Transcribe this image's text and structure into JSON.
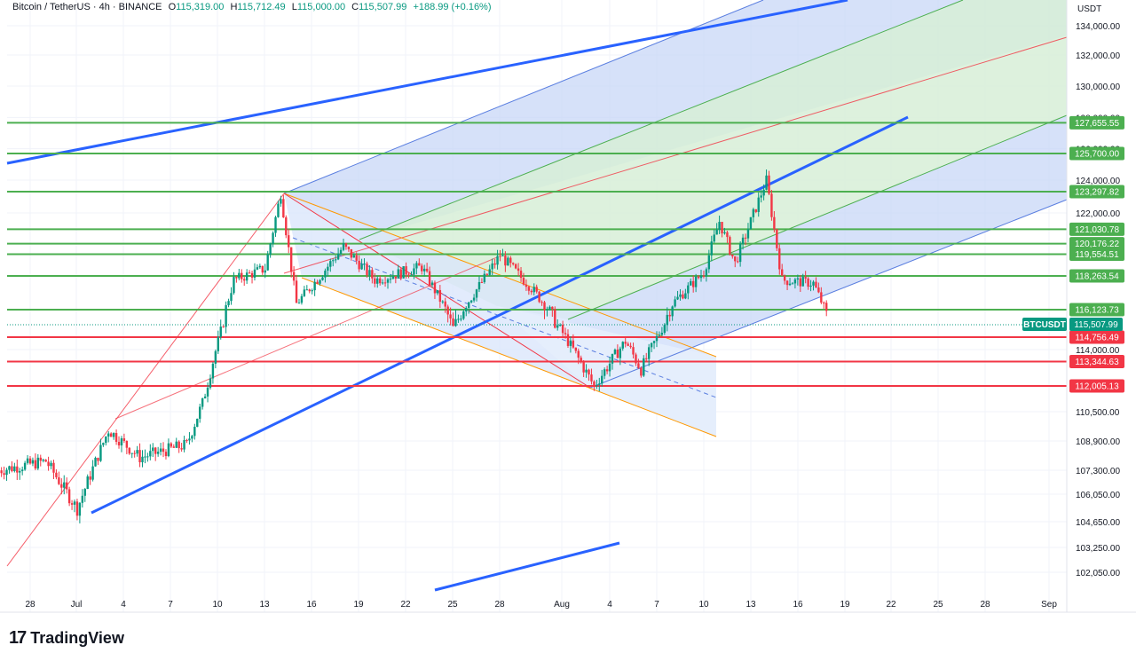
{
  "header": {
    "pair": "Bitcoin / TetherUS · 4h · BINANCE",
    "open_label": "O",
    "open": "115,319.00",
    "high_label": "H",
    "high": "115,712.49",
    "low_label": "L",
    "low": "115,000.00",
    "close_label": "C",
    "close": "115,507.99",
    "change": "+188.99 (+0.16%)"
  },
  "price_axis": {
    "unit": "USDT",
    "ticks": [
      "134,000.00",
      "132,000.00",
      "130,000.00",
      "128,000.00",
      "126,000.00",
      "124,000.00",
      "122,000.00",
      "114,000.00",
      "110,500.00",
      "108,900.00",
      "107,300.00",
      "106,050.00",
      "104,650.00",
      "103,250.00",
      "102,050.00"
    ]
  },
  "time_axis": {
    "ticks": [
      "28",
      "Jul",
      "4",
      "7",
      "10",
      "13",
      "16",
      "19",
      "22",
      "25",
      "28",
      "Aug",
      "4",
      "7",
      "10",
      "13",
      "16",
      "19",
      "22",
      "25",
      "28",
      "Sep"
    ]
  },
  "brand": {
    "name": "TradingView"
  },
  "colors": {
    "up": "#089981",
    "down": "#f23645",
    "blue_line": "#2962ff",
    "green_level": "#4caf50",
    "red_level": "#f23645",
    "blue_fill": "#c8d7f7",
    "green_fill": "#d7eed7",
    "orange_line": "#ff9800"
  },
  "chart_data": {
    "type": "candlestick",
    "symbol": "BTCUSDT",
    "timeframe": "4h",
    "last_price": 115507.99,
    "last_price_label": "115,507.99",
    "ticker_label": "BTCUSDT",
    "approx_close_path": [
      {
        "x": "Jun 26",
        "y": 107300
      },
      {
        "x": "Jun 29",
        "y": 107800
      },
      {
        "x": "Jul 1",
        "y": 105300
      },
      {
        "x": "Jul 3",
        "y": 109500
      },
      {
        "x": "Jul 5",
        "y": 108000
      },
      {
        "x": "Jul 8",
        "y": 108700
      },
      {
        "x": "Jul 9",
        "y": 111000
      },
      {
        "x": "Jul 11",
        "y": 118000
      },
      {
        "x": "Jul 13",
        "y": 118700
      },
      {
        "x": "Jul 14",
        "y": 123200
      },
      {
        "x": "Jul 15",
        "y": 116500
      },
      {
        "x": "Jul 18",
        "y": 120000
      },
      {
        "x": "Jul 20",
        "y": 118000
      },
      {
        "x": "Jul 23",
        "y": 118800
      },
      {
        "x": "Jul 25",
        "y": 115300
      },
      {
        "x": "Jul 28",
        "y": 119500
      },
      {
        "x": "Jul 30",
        "y": 117500
      },
      {
        "x": "Aug 1",
        "y": 115000
      },
      {
        "x": "Aug 3",
        "y": 112000
      },
      {
        "x": "Aug 5",
        "y": 114500
      },
      {
        "x": "Aug 6",
        "y": 112900
      },
      {
        "x": "Aug 8",
        "y": 116500
      },
      {
        "x": "Aug 10",
        "y": 118500
      },
      {
        "x": "Aug 11",
        "y": 121500
      },
      {
        "x": "Aug 12",
        "y": 119000
      },
      {
        "x": "Aug 14",
        "y": 124000
      },
      {
        "x": "Aug 15",
        "y": 118000
      },
      {
        "x": "Aug 17",
        "y": 117800
      },
      {
        "x": "Aug 18",
        "y": 115508
      }
    ],
    "support_resistance": {
      "resistance": [
        {
          "value": 127655.55,
          "label": "127,655.55"
        },
        {
          "value": 125700.0,
          "label": "125,700.00"
        },
        {
          "value": 123297.82,
          "label": "123,297.82"
        },
        {
          "value": 121030.78,
          "label": "121,030.78"
        },
        {
          "value": 120176.22,
          "label": "120,176.22"
        },
        {
          "value": 119554.51,
          "label": "119,554.51"
        },
        {
          "value": 118263.54,
          "label": "118,263.54"
        },
        {
          "value": 116123.73,
          "label": "116,123.73"
        }
      ],
      "support": [
        {
          "value": 114756.49,
          "label": "114,756.49"
        },
        {
          "value": 113344.63,
          "label": "113,344.63"
        },
        {
          "value": 112005.13,
          "label": "112,005.13"
        }
      ]
    }
  }
}
